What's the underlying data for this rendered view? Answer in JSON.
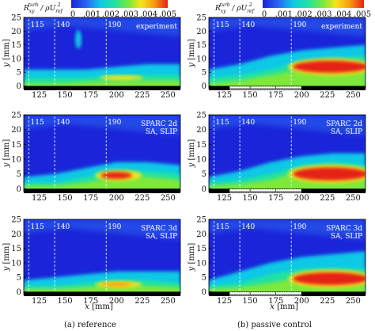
{
  "chart_data": {
    "type": "heatmap",
    "colorbar": {
      "label_text": "R",
      "label_sup": "turb",
      "label_sub": "xy",
      "label_mid": " / ρU",
      "label_sup2": "2",
      "label_sub2": "ref",
      "ticks": [
        "0",
        ".001",
        ".002",
        ".003",
        ".004",
        ".005"
      ],
      "range": [
        0,
        0.005
      ]
    },
    "x_ticks": [
      "125",
      "150",
      "175",
      "200",
      "225",
      "250"
    ],
    "y_ticks": [
      "0",
      "5",
      "10",
      "15",
      "20",
      "25"
    ],
    "xlim": [
      110,
      262
    ],
    "ylim": [
      -1,
      25
    ],
    "xlabel_var": "x",
    "xlabel_unit": "[mm]",
    "ylabel_var": "y",
    "ylabel_unit": "[mm]",
    "station_labels": [
      "115",
      "140",
      "190"
    ],
    "stations": [
      115,
      140,
      190
    ],
    "control_region": [
      130,
      200
    ],
    "panels": [
      {
        "column": "reference",
        "row": 0,
        "label_lines": [
          "experiment"
        ]
      },
      {
        "column": "control",
        "row": 0,
        "label_lines": [
          "experiment"
        ]
      },
      {
        "column": "reference",
        "row": 1,
        "label_lines": [
          "SPARC 2d",
          "SA, SLIP"
        ]
      },
      {
        "column": "control",
        "row": 1,
        "label_lines": [
          "SPARC 2d",
          "SA, SLIP"
        ]
      },
      {
        "column": "reference",
        "row": 2,
        "label_lines": [
          "SPARC 3d",
          "SA, SLIP"
        ]
      },
      {
        "column": "control",
        "row": 2,
        "label_lines": [
          "SPARC 3d",
          "SA, SLIP"
        ]
      }
    ],
    "captions": [
      "(a) reference",
      "(b) passive control"
    ]
  },
  "colors": {
    "c0": "#1a24d9",
    "c1": "#2a62f0",
    "c2": "#10c8e6",
    "c3": "#22e2a0",
    "c4": "#7ee83a",
    "c5": "#f4e51c",
    "c6": "#f89a12",
    "c7": "#e52216",
    "wall": "#000000"
  }
}
